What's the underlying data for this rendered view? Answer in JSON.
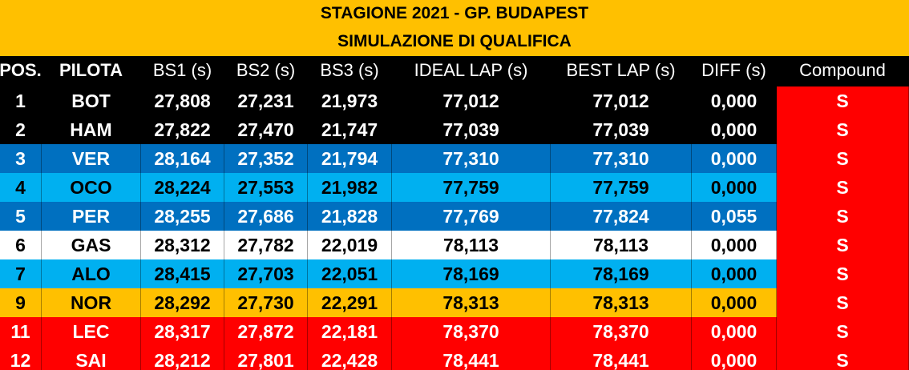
{
  "title": "STAGIONE 2021 - GP. BUDAPEST",
  "subtitle": "SIMULAZIONE DI QUALIFICA",
  "headers": [
    "POS.",
    "PILOTA",
    "BS1 (s)",
    "BS2 (s)",
    "BS3 (s)",
    "IDEAL LAP (s)",
    "BEST LAP (s)",
    "DIFF (s)",
    "Compound"
  ],
  "rows": [
    {
      "pos": "1",
      "driver": "BOT",
      "bs1": "27,808",
      "bs2": "27,231",
      "bs3": "21,973",
      "ideal": "77,012",
      "best": "77,012",
      "diff": "0,000",
      "compound": "S",
      "bg": "#000000",
      "fg": "#FFFFFF"
    },
    {
      "pos": "2",
      "driver": "HAM",
      "bs1": "27,822",
      "bs2": "27,470",
      "bs3": "21,747",
      "ideal": "77,039",
      "best": "77,039",
      "diff": "0,000",
      "compound": "S",
      "bg": "#000000",
      "fg": "#FFFFFF"
    },
    {
      "pos": "3",
      "driver": "VER",
      "bs1": "28,164",
      "bs2": "27,352",
      "bs3": "21,794",
      "ideal": "77,310",
      "best": "77,310",
      "diff": "0,000",
      "compound": "S",
      "bg": "#0070C0",
      "fg": "#FFFFFF"
    },
    {
      "pos": "4",
      "driver": "OCO",
      "bs1": "28,224",
      "bs2": "27,553",
      "bs3": "21,982",
      "ideal": "77,759",
      "best": "77,759",
      "diff": "0,000",
      "compound": "S",
      "bg": "#00B0F0",
      "fg": "#000000"
    },
    {
      "pos": "5",
      "driver": "PER",
      "bs1": "28,255",
      "bs2": "27,686",
      "bs3": "21,828",
      "ideal": "77,769",
      "best": "77,824",
      "diff": "0,055",
      "compound": "S",
      "bg": "#0070C0",
      "fg": "#FFFFFF"
    },
    {
      "pos": "6",
      "driver": "GAS",
      "bs1": "28,312",
      "bs2": "27,782",
      "bs3": "22,019",
      "ideal": "78,113",
      "best": "78,113",
      "diff": "0,000",
      "compound": "S",
      "bg": "#FFFFFF",
      "fg": "#000000"
    },
    {
      "pos": "7",
      "driver": "ALO",
      "bs1": "28,415",
      "bs2": "27,703",
      "bs3": "22,051",
      "ideal": "78,169",
      "best": "78,169",
      "diff": "0,000",
      "compound": "S",
      "bg": "#00B0F0",
      "fg": "#000000"
    },
    {
      "pos": "9",
      "driver": "NOR",
      "bs1": "28,292",
      "bs2": "27,730",
      "bs3": "22,291",
      "ideal": "78,313",
      "best": "78,313",
      "diff": "0,000",
      "compound": "S",
      "bg": "#FFC000",
      "fg": "#000000"
    },
    {
      "pos": "11",
      "driver": "LEC",
      "bs1": "28,317",
      "bs2": "27,872",
      "bs3": "22,181",
      "ideal": "78,370",
      "best": "78,370",
      "diff": "0,000",
      "compound": "S",
      "bg": "#FF0000",
      "fg": "#FFFFFF"
    },
    {
      "pos": "12",
      "driver": "SAI",
      "bs1": "28,212",
      "bs2": "27,801",
      "bs3": "22,428",
      "ideal": "78,441",
      "best": "78,441",
      "diff": "0,000",
      "compound": "S",
      "bg": "#FF0000",
      "fg": "#FFFFFF"
    }
  ]
}
